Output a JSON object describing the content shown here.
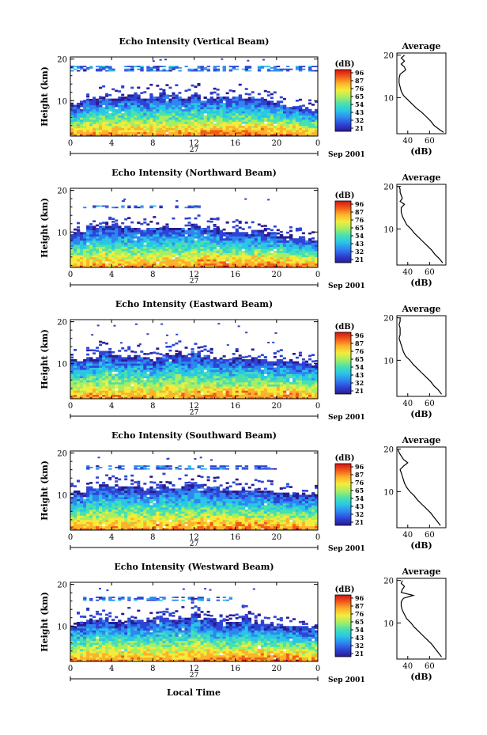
{
  "figure": {
    "date_label": "Sep 2001",
    "day_label": "27",
    "xlabel_bottom": "Local Time",
    "ylabel": "Height (km)",
    "colorbar_unit": "(dB)",
    "colorbar_ticks": [
      "96",
      "87",
      "76",
      "65",
      "54",
      "43",
      "32",
      "21"
    ],
    "avg_title": "Average",
    "avg_unit": "(dB)",
    "colors": {
      "scale": [
        "#2a1a8f",
        "#2d44d6",
        "#2e86f0",
        "#29c6e6",
        "#49e0b0",
        "#a6ee62",
        "#f4ec3c",
        "#fcb22a",
        "#f25a1a",
        "#d21414"
      ]
    }
  },
  "chart_data": [
    {
      "type": "heatmap",
      "title": "Echo Intensity (Vertical Beam)",
      "x_ticks": [
        "0",
        "4",
        "8",
        "12",
        "16",
        "20",
        "0"
      ],
      "y_ticks": [
        "20",
        "10"
      ],
      "xlim": [
        0,
        24
      ],
      "ylim": [
        1.5,
        20.5
      ],
      "echo_top_km": [
        8.5,
        9.2,
        10.0,
        10.6,
        10.3,
        10.9,
        11.2,
        10.6,
        11.0,
        11.6,
        10.8,
        10.4,
        11.3,
        10.7,
        10.2,
        10.5,
        10.9,
        10.1,
        10.4,
        10.0,
        9.6,
        8.4,
        8.0,
        7.8,
        7.4
      ],
      "upper_layer_km": [
        17.0,
        18.2
      ],
      "upper_layer_x": [
        0,
        24
      ],
      "dots_km": [
        19.5
      ],
      "profile": {
        "type": "line",
        "x_ticks": [
          "40",
          "60"
        ],
        "xlim": [
          30,
          75
        ],
        "y_ticks": [
          "20",
          "10"
        ],
        "ylim": [
          1.5,
          20.5
        ],
        "height_km": [
          20,
          19.3,
          18.6,
          17.9,
          17.2,
          16.5,
          15.5,
          14.5,
          13.5,
          12.5,
          11.5,
          10.5,
          9.5,
          8.5,
          7.5,
          6.5,
          5.5,
          4.5,
          3.5,
          2.5,
          1.8
        ],
        "db": [
          37,
          34,
          37,
          34,
          37,
          38,
          33,
          32,
          32,
          33,
          34,
          36,
          40,
          44,
          48,
          53,
          57,
          61,
          64,
          69,
          73
        ]
      }
    },
    {
      "type": "heatmap",
      "title": "Echo Intensity (Northward Beam)",
      "x_ticks": [
        "0",
        "4",
        "8",
        "12",
        "16",
        "20",
        "0"
      ],
      "y_ticks": [
        "20",
        "10"
      ],
      "xlim": [
        0,
        24
      ],
      "ylim": [
        1.5,
        20.5
      ],
      "echo_top_km": [
        9.6,
        10.2,
        11.0,
        11.5,
        11.2,
        10.8,
        11.0,
        10.4,
        10.6,
        10.9,
        10.5,
        10.8,
        11.5,
        11.0,
        10.6,
        10.2,
        10.0,
        9.8,
        10.1,
        9.7,
        9.3,
        8.8,
        8.5,
        8.1,
        7.9
      ],
      "upper_layer_km": [
        15.7,
        16.4
      ],
      "upper_layer_x": [
        1,
        13
      ],
      "dots_km": [
        17.5
      ],
      "profile": {
        "type": "line",
        "x_ticks": [
          "40",
          "60"
        ],
        "xlim": [
          30,
          75
        ],
        "y_ticks": [
          "20",
          "10"
        ],
        "ylim": [
          1.5,
          20.5
        ],
        "height_km": [
          20,
          19.3,
          18.6,
          17.9,
          17.2,
          16.5,
          15.8,
          15.0,
          14.0,
          13.0,
          12.0,
          11.0,
          10.0,
          9.0,
          8.0,
          7.0,
          6.0,
          5.0,
          4.0,
          3.0,
          2.0
        ],
        "db": [
          32,
          33,
          33,
          34,
          35,
          33,
          37,
          34,
          34,
          35,
          37,
          39,
          43,
          46,
          50,
          54,
          58,
          62,
          65,
          69,
          72
        ]
      }
    },
    {
      "type": "heatmap",
      "title": "Echo Intensity (Eastward Beam)",
      "x_ticks": [
        "0",
        "4",
        "8",
        "12",
        "16",
        "20",
        "0"
      ],
      "y_ticks": [
        "20",
        "10"
      ],
      "xlim": [
        0,
        24
      ],
      "ylim": [
        1.5,
        20.5
      ],
      "echo_top_km": [
        10.8,
        10.5,
        11.2,
        12.6,
        12.0,
        11.4,
        11.6,
        11.0,
        10.8,
        11.7,
        12.2,
        11.5,
        12.4,
        11.6,
        11.0,
        10.6,
        11.4,
        10.8,
        11.1,
        10.7,
        10.3,
        10.5,
        10.1,
        9.8,
        9.9
      ],
      "upper_layer_km": [],
      "upper_layer_x": [],
      "dots_km": [
        14.5,
        16.8,
        19.0
      ],
      "profile": {
        "type": "line",
        "x_ticks": [
          "40",
          "60"
        ],
        "xlim": [
          30,
          75
        ],
        "y_ticks": [
          "20",
          "10"
        ],
        "ylim": [
          1.5,
          20.5
        ],
        "height_km": [
          20,
          19.2,
          18.4,
          17.6,
          16.8,
          16.0,
          15.2,
          14.4,
          13.6,
          12.8,
          12.0,
          11.0,
          10.0,
          9.0,
          8.0,
          7.0,
          6.0,
          5.0,
          4.0,
          3.0,
          2.0
        ],
        "db": [
          33,
          33,
          32,
          33,
          33,
          33,
          32,
          33,
          34,
          35,
          36,
          38,
          42,
          45,
          49,
          53,
          57,
          61,
          64,
          68,
          71
        ]
      }
    },
    {
      "type": "heatmap",
      "title": "Echo Intensity (Southward Beam)",
      "x_ticks": [
        "0",
        "4",
        "8",
        "12",
        "16",
        "20",
        "0"
      ],
      "y_ticks": [
        "20",
        "10"
      ],
      "xlim": [
        0,
        24
      ],
      "ylim": [
        1.5,
        20.5
      ],
      "echo_top_km": [
        10.2,
        10.6,
        11.6,
        12.4,
        11.8,
        11.4,
        11.8,
        11.2,
        11.6,
        12.0,
        11.5,
        11.8,
        12.4,
        11.8,
        11.2,
        11.0,
        10.8,
        10.7,
        11.0,
        10.6,
        10.4,
        10.2,
        10.0,
        9.8,
        9.6
      ],
      "upper_layer_km": [
        16.0,
        16.8
      ],
      "upper_layer_x": [
        1,
        20
      ],
      "dots_km": [
        18.5
      ],
      "profile": {
        "type": "line",
        "x_ticks": [
          "40",
          "60"
        ],
        "xlim": [
          30,
          75
        ],
        "y_ticks": [
          "20",
          "10"
        ],
        "ylim": [
          1.5,
          20.5
        ],
        "height_km": [
          20,
          19.2,
          18.4,
          17.6,
          16.8,
          16.0,
          15.2,
          14.4,
          13.6,
          12.8,
          12.0,
          11.0,
          10.0,
          9.0,
          8.0,
          7.0,
          6.0,
          5.0,
          4.0,
          3.0,
          2.0
        ],
        "db": [
          31,
          32,
          34,
          36,
          40,
          36,
          33,
          34,
          35,
          36,
          37,
          39,
          42,
          46,
          49,
          53,
          57,
          61,
          64,
          67,
          70
        ]
      }
    },
    {
      "type": "heatmap",
      "title": "Echo Intensity (Westward Beam)",
      "x_ticks": [
        "0",
        "4",
        "8",
        "12",
        "16",
        "20",
        "0"
      ],
      "y_ticks": [
        "20",
        "10"
      ],
      "xlim": [
        0,
        24
      ],
      "ylim": [
        1.5,
        20.5
      ],
      "echo_top_km": [
        9.8,
        10.4,
        11.2,
        11.8,
        11.0,
        10.8,
        11.6,
        11.0,
        11.3,
        12.0,
        11.2,
        11.6,
        12.6,
        11.6,
        10.9,
        10.6,
        10.8,
        12.0,
        10.8,
        10.4,
        10.1,
        9.8,
        9.6,
        9.2,
        9.0
      ],
      "upper_layer_km": [
        16.0,
        16.8
      ],
      "upper_layer_x": [
        1,
        17
      ],
      "dots_km": [
        18.5
      ],
      "profile": {
        "type": "line",
        "x_ticks": [
          "40",
          "60"
        ],
        "xlim": [
          30,
          75
        ],
        "y_ticks": [
          "20",
          "10"
        ],
        "ylim": [
          1.5,
          20.5
        ],
        "height_km": [
          20,
          19.3,
          18.6,
          17.9,
          17.2,
          16.5,
          15.8,
          15.0,
          14.0,
          13.0,
          12.0,
          11.0,
          10.0,
          9.0,
          8.0,
          7.0,
          6.0,
          5.0,
          4.0,
          3.0,
          2.0
        ],
        "db": [
          35,
          34,
          37,
          35,
          34,
          45,
          36,
          34,
          34,
          35,
          37,
          39,
          43,
          46,
          50,
          54,
          58,
          62,
          65,
          68,
          71
        ]
      }
    }
  ]
}
